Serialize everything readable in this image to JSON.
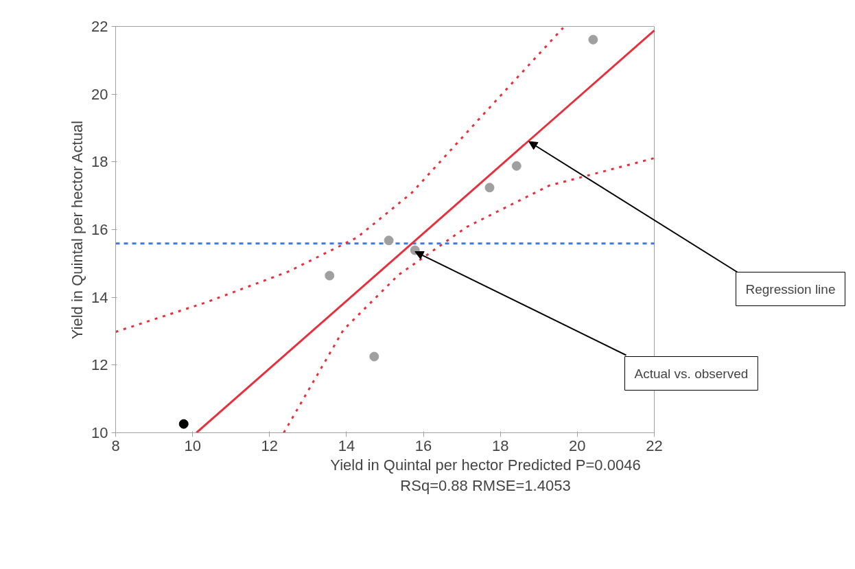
{
  "chart_data": {
    "type": "scatter",
    "xlabel": "Yield in Quintal per hector Predicted P=0.0046\nRSq=0.88 RMSE=1.4053",
    "ylabel": "Yield in Quintal per hector Actual",
    "xlim": [
      8,
      22
    ],
    "ylim": [
      10,
      22
    ],
    "xticks": [
      8,
      10,
      12,
      14,
      16,
      18,
      20,
      22
    ],
    "yticks": [
      10,
      12,
      14,
      16,
      18,
      20,
      22
    ],
    "grid": false,
    "series": [
      {
        "type": "line",
        "x": [
          10.1,
          22
        ],
        "values": [
          10,
          21.88
        ],
        "color": "#e8303c",
        "line_style": "solid"
      },
      {
        "type": "line",
        "x": [
          8,
          10.35,
          12.49,
          14.28,
          15.7,
          17.49,
          19.63
        ],
        "values": [
          12.98,
          13.85,
          14.76,
          15.77,
          17.09,
          19.32,
          21.96
        ],
        "color": "#e8303c",
        "line_style": "dotted"
      },
      {
        "type": "line",
        "x": [
          12.37,
          13.92,
          15.35,
          17.13,
          19.27,
          22
        ],
        "values": [
          10,
          13.04,
          14.66,
          16.08,
          17.3,
          18.11
        ],
        "color": "#e8303c",
        "line_style": "dotted"
      },
      {
        "marker": "circle",
        "x": [
          9.77,
          13.56,
          14.72,
          15.1,
          15.78,
          17.72,
          18.42,
          20.41
        ],
        "values": [
          10.26,
          14.64,
          12.25,
          15.68,
          15.39,
          17.24,
          17.88,
          21.61
        ],
        "colors": [
          "#000000",
          "#a0a0a0",
          "#a0a0a0",
          "#a0a0a0",
          "#a0a0a0",
          "#a0a0a0",
          "#a0a0a0",
          "#a0a0a0"
        ]
      }
    ],
    "ref_lines": [
      {
        "axis": "y",
        "value": 15.59,
        "color": "#3c78f0",
        "line_style": "dashed"
      }
    ],
    "annotations": [
      {
        "text": "Regression line",
        "x": 18.74,
        "y": 18.6
      },
      {
        "text": "Actual vs. observed",
        "x": 15.78,
        "y": 15.35
      }
    ]
  }
}
